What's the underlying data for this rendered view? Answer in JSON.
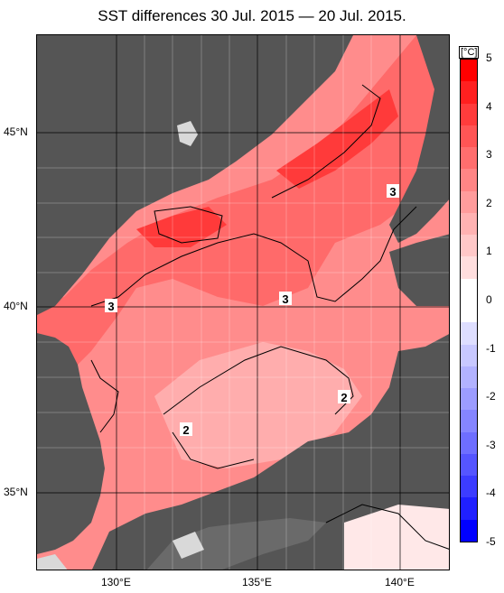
{
  "title": "SST differences 30 Jul. 2015 — 20 Jul. 2015.",
  "map": {
    "lon_ticks": [
      "130°E",
      "135°E",
      "140°E"
    ],
    "lat_ticks": [
      "45°N",
      "40°N",
      "35°N"
    ],
    "contour_labels": [
      "3",
      "3",
      "3",
      "2",
      "2"
    ],
    "colors": {
      "land": "#555555",
      "ice_or_nodata": "#d9d9d9",
      "contour": "#000000"
    }
  },
  "colorbar": {
    "unit": "[°C]",
    "labels": [
      "5",
      "4",
      "3",
      "2",
      "1",
      "0",
      "-1",
      "-2",
      "-3",
      "-4",
      "-5"
    ],
    "colors": [
      "#ff0000",
      "#ff2020",
      "#ff3c3c",
      "#ff5555",
      "#ff6e6e",
      "#ff8585",
      "#ff9c9c",
      "#ffb2b2",
      "#ffc8c8",
      "#ffdede",
      "#ffffff",
      "#ffffff",
      "#dedeff",
      "#c8c8ff",
      "#b2b2ff",
      "#9c9cff",
      "#8585ff",
      "#6e6eff",
      "#5555ff",
      "#3c3cff",
      "#2020ff",
      "#0000ff"
    ]
  }
}
